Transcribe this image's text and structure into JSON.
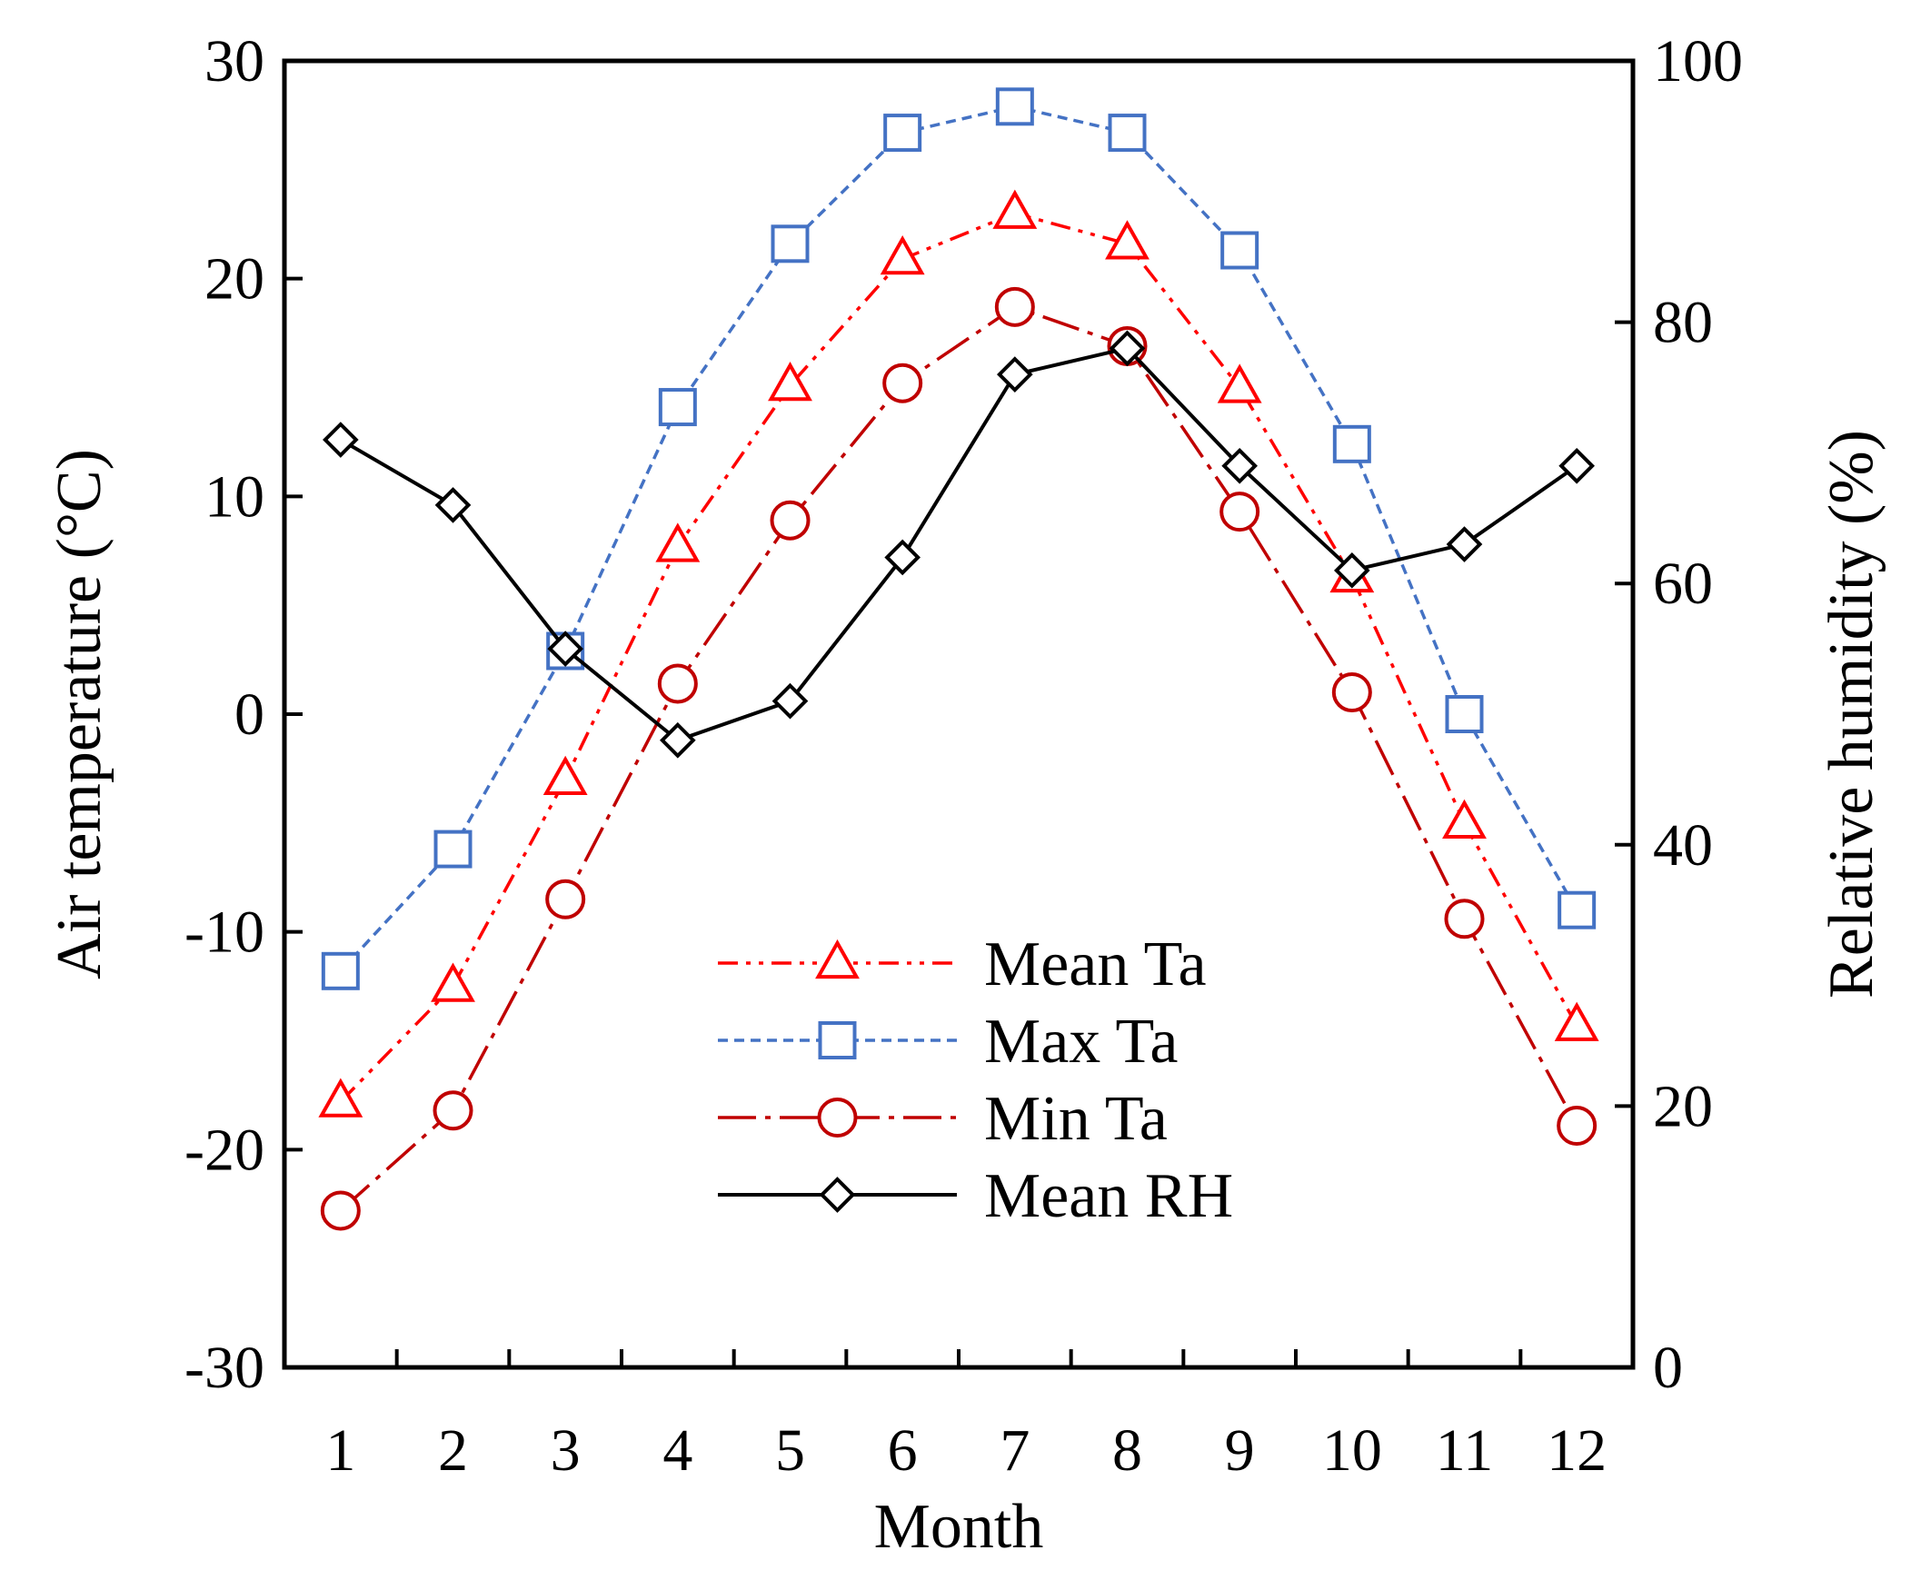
{
  "chart_data": {
    "type": "line",
    "xlabel": "Month",
    "ylabel_left": "Air temperature  (°C)",
    "ylabel_right": "Relative humidity (%)",
    "x": [
      1,
      2,
      3,
      4,
      5,
      6,
      7,
      8,
      9,
      10,
      11,
      12
    ],
    "ylim_left": [
      -30,
      30
    ],
    "yticks_left": [
      "30",
      "20",
      "10",
      "0",
      "-10",
      "-20",
      "-30"
    ],
    "ylim_right": [
      0,
      100
    ],
    "yticks_right": [
      "100",
      "80",
      "60",
      "40",
      "20",
      "0"
    ],
    "grid": false,
    "legend_position": "lower-center",
    "series": [
      {
        "name": "Mean Ta",
        "axis": "left",
        "color": "#ff0000",
        "marker": "triangle",
        "dash": "dash-dot-dot",
        "values": [
          -17.8,
          -12.5,
          -3,
          7.7,
          15.1,
          20.9,
          23,
          21.6,
          15,
          6.3,
          -5,
          -14.3
        ]
      },
      {
        "name": "Max Ta",
        "axis": "left",
        "color": "#4472c4",
        "marker": "square",
        "dash": "dashed",
        "values": [
          -11.8,
          -6.2,
          2.9,
          14.1,
          21.6,
          26.7,
          27.9,
          26.7,
          21.3,
          12.4,
          0,
          -9
        ]
      },
      {
        "name": "Min Ta",
        "axis": "left",
        "color": "#c00000",
        "marker": "circle",
        "dash": "long-dash-dot",
        "values": [
          -22.8,
          -18.2,
          -8.5,
          1.4,
          8.9,
          15.2,
          18.7,
          16.9,
          9.3,
          1,
          -9.4,
          -18.9
        ]
      },
      {
        "name": "Mean RH",
        "axis": "right",
        "color": "#000000",
        "marker": "diamond",
        "dash": "solid",
        "values": [
          71,
          66,
          55,
          48,
          51,
          62,
          76,
          78,
          69,
          61,
          63,
          69
        ]
      }
    ]
  }
}
